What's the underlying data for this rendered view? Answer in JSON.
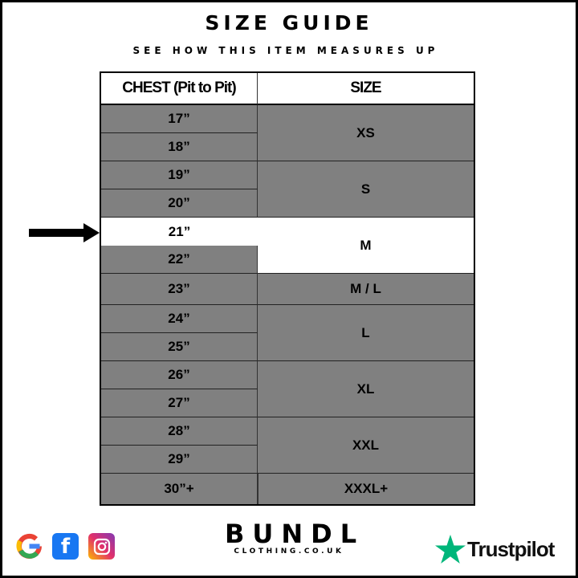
{
  "title": "SIZE GUIDE",
  "subtitle": "SEE HOW THIS ITEM MEASURES UP",
  "table": {
    "headers": [
      "CHEST (Pit to Pit)",
      "SIZE"
    ],
    "chest": [
      "17”",
      "18”",
      "19”",
      "20”",
      "21”",
      "22”",
      "23”",
      "24”",
      "25”",
      "26”",
      "27”",
      "28”",
      "29”",
      "30”+"
    ],
    "sizes": [
      "XS",
      "S",
      "M",
      "M / L",
      "L",
      "XL",
      "XXL",
      "XXXL+"
    ],
    "highlighted_chest": "21”",
    "highlighted_size": "M"
  },
  "colors": {
    "cell": "#808080",
    "highlight": "#ffffff",
    "trustpilot": "#00b67a"
  },
  "footer": {
    "social_icons": [
      "google-icon",
      "facebook-icon",
      "instagram-icon"
    ],
    "brand": "BUNDL",
    "brand_sub": "CLOTHING.CO.UK",
    "trustpilot": "Trustpilot"
  }
}
